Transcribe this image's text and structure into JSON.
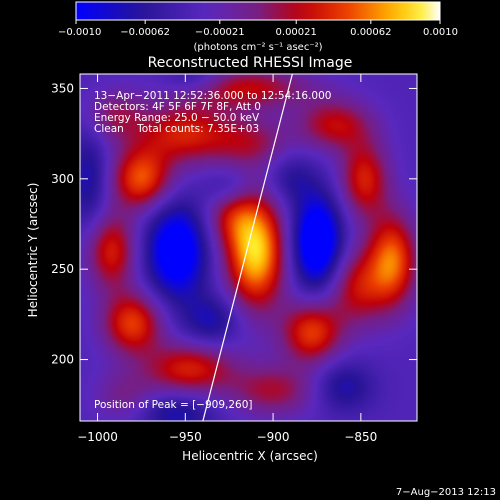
{
  "colorbar": {
    "ticks": [
      -0.001,
      -0.00062,
      -0.00021,
      0.00021,
      0.00062,
      0.001
    ],
    "tick_labels": [
      "−0.0010",
      "−0.00062",
      "−0.00021",
      "0.00021",
      "0.00062",
      "0.0010"
    ],
    "unit_label": "(photons cm⁻² s⁻¹ asec⁻²)",
    "colormap": "rhessi-blue-purple-red-yellow-white"
  },
  "chart_data": {
    "type": "heatmap",
    "title": "Reconstructed RHESSI Image",
    "xlabel": "Heliocentric X (arcsec)",
    "ylabel": "Heliocentric Y (arcsec)",
    "xlim": [
      -1010,
      -818
    ],
    "ylim": [
      166,
      358
    ],
    "vlim": [
      -0.001,
      0.001
    ],
    "x_ticks": [
      -1000,
      -950,
      -900,
      -850
    ],
    "x_tick_labels": [
      "−1000",
      "−950",
      "−900",
      "−850"
    ],
    "y_ticks": [
      200,
      250,
      300,
      350
    ],
    "y_tick_labels": [
      "200",
      "250",
      "300",
      "350"
    ],
    "annotations": [
      "13−Apr−2011 12:52:36.000 to 12:54:16.000",
      "Detectors: 4F 5F 6F 7F 8F, Att 0",
      "Energy Range: 25.0 − 50.0 keV",
      "Clean    Total counts: 7.35E+03"
    ],
    "peak_label": "Position of Peak = [−909,260]",
    "peak": [
      -909,
      260
    ],
    "limb_line": [
      [
        -940,
        166
      ],
      [
        -889,
        358
      ]
    ],
    "sources": [
      {
        "x": -910,
        "y": 260,
        "amp": 0.0012,
        "sx": 12,
        "sy": 22
      },
      {
        "x": -925,
        "y": 280,
        "amp": 0.0004,
        "sx": 10,
        "sy": 12
      },
      {
        "x": -950,
        "y": 325,
        "amp": 0.0007,
        "sx": 20,
        "sy": 12
      },
      {
        "x": -912,
        "y": 320,
        "amp": 0.0004,
        "sx": 15,
        "sy": 10
      },
      {
        "x": -975,
        "y": 300,
        "amp": 0.00085,
        "sx": 12,
        "sy": 12
      },
      {
        "x": -992,
        "y": 260,
        "amp": 0.0007,
        "sx": 10,
        "sy": 15
      },
      {
        "x": -980,
        "y": 220,
        "amp": 0.0008,
        "sx": 12,
        "sy": 12
      },
      {
        "x": -948,
        "y": 195,
        "amp": 0.0007,
        "sx": 18,
        "sy": 10
      },
      {
        "x": -900,
        "y": 183,
        "amp": 0.0005,
        "sx": 18,
        "sy": 10
      },
      {
        "x": -878,
        "y": 215,
        "amp": 0.0008,
        "sx": 12,
        "sy": 12
      },
      {
        "x": -852,
        "y": 240,
        "amp": 0.0006,
        "sx": 12,
        "sy": 15
      },
      {
        "x": -832,
        "y": 255,
        "amp": 0.0009,
        "sx": 10,
        "sy": 18
      },
      {
        "x": -848,
        "y": 300,
        "amp": 0.0007,
        "sx": 10,
        "sy": 15
      },
      {
        "x": -865,
        "y": 330,
        "amp": 0.0006,
        "sx": 15,
        "sy": 10
      },
      {
        "x": -915,
        "y": 350,
        "amp": 0.0006,
        "sx": 25,
        "sy": 8
      },
      {
        "x": -990,
        "y": 335,
        "amp": 0.0004,
        "sx": 12,
        "sy": 10
      },
      {
        "x": -985,
        "y": 180,
        "amp": 0.0003,
        "sx": 12,
        "sy": 10
      },
      {
        "x": -955,
        "y": 260,
        "amp": -0.0009,
        "sx": 12,
        "sy": 18
      },
      {
        "x": -875,
        "y": 265,
        "amp": -0.001,
        "sx": 10,
        "sy": 18
      },
      {
        "x": -935,
        "y": 222,
        "amp": -0.0004,
        "sx": 12,
        "sy": 10
      },
      {
        "x": -925,
        "y": 295,
        "amp": -0.0003,
        "sx": 10,
        "sy": 8
      },
      {
        "x": -1005,
        "y": 300,
        "amp": -0.0004,
        "sx": 8,
        "sy": 20
      },
      {
        "x": -955,
        "y": 170,
        "amp": -0.0004,
        "sx": 15,
        "sy": 8
      },
      {
        "x": -860,
        "y": 185,
        "amp": -0.0004,
        "sx": 12,
        "sy": 10
      },
      {
        "x": -890,
        "y": 300,
        "amp": -0.0003,
        "sx": 10,
        "sy": 10
      },
      {
        "x": -945,
        "y": 355,
        "amp": -0.0003,
        "sx": 12,
        "sy": 6
      }
    ]
  },
  "footer": {
    "date": "7−Aug−2013 12:13"
  }
}
